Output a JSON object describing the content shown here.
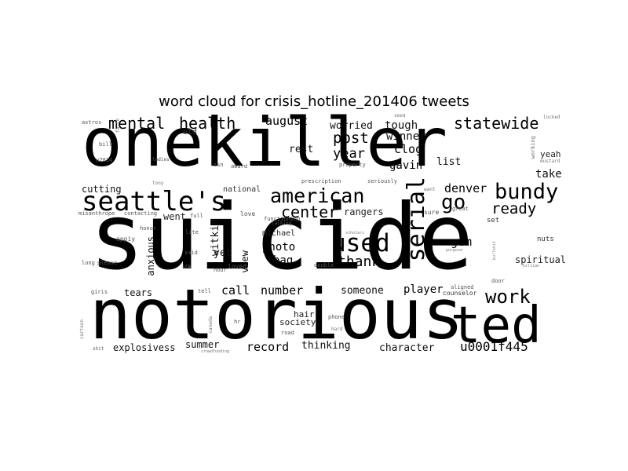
{
  "title": "word cloud for crisis_hotline_201406 tweets",
  "words": {
    "w1": "onekiller",
    "w2": "suicide",
    "w3": "notorious",
    "w4": "ted",
    "w5": "seattle's",
    "w6": "american",
    "w7": "mental",
    "w8": "health",
    "w9": "august",
    "w10": "statewide",
    "w11": "bundy",
    "w12": "serial",
    "w13": "used",
    "w14": "go",
    "w15": "ready",
    "w16": "work",
    "w17": "center",
    "w18": "denver",
    "w19": "post",
    "w20": "year",
    "w21": "worried",
    "w22": "tough",
    "w23": "winner",
    "w24": "clog",
    "w25": "gavin",
    "w26": "list",
    "w27": "rest",
    "w28": "take",
    "w29": "yeah",
    "w30": "thank",
    "w31": "gem",
    "w32": "photo",
    "w33": "bag",
    "w34": "michael",
    "w35": "call",
    "w36": "number",
    "w37": "someone",
    "w38": "player",
    "w39": "record",
    "w40": "thinking",
    "w41": "character",
    "w42": "u0001f445",
    "w43": "explosivess",
    "w44": "summer",
    "w45": "cutting",
    "w46": "national",
    "w47": "tears",
    "w48": "anxious",
    "w49": "witkin",
    "w50": "yet",
    "w51": "view",
    "w52": "spiritual",
    "w53": "nuts",
    "w54": "hair",
    "w55": "society",
    "w56": "went",
    "w57": "rangers",
    "w58": "old",
    "w59": "love",
    "w60": "appiy",
    "w61": "said",
    "w62": "loved",
    "w63": "double",
    "w64": "counselor",
    "w65": "aligned",
    "w66": "door",
    "w67": "set",
    "w68": "sure",
    "w69": "great",
    "w70": "astros",
    "w71": "faith",
    "w72": "bill",
    "w73": "u2014",
    "w74": "ladies",
    "w75": "award",
    "w76": "isn",
    "w77": "prescription",
    "w78": "seriously",
    "w79": "tony",
    "w80": "misanthrope",
    "w81": "contacting",
    "w82": "talking",
    "w83": "functioning",
    "w84": "long",
    "w85": "please",
    "w86": "giris",
    "w87": "tell",
    "w88": "cartoon",
    "w89": "canada",
    "w90": "road",
    "w91": "phone",
    "w92": "shit",
    "w93": "crowdfunding",
    "w94": "honor",
    "w95": "hour",
    "w96": "seed",
    "w97": "locked",
    "w98": "mustard",
    "w99": "working",
    "w100": "scholars",
    "w101": "purpose",
    "w102": "bullshit",
    "w103": "killian",
    "w104": "property",
    "w105": "hard",
    "w106": "ira",
    "w107": "lite",
    "w108": "full",
    "w109": "want",
    "w110": "hr"
  }
}
